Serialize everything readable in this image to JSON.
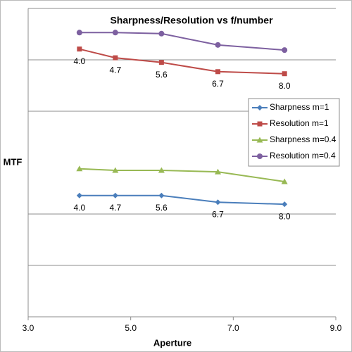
{
  "chart_data": {
    "type": "line",
    "title": "Sharpness/Resolution vs f/number",
    "x_label": "Aperture",
    "y_label": "MTF",
    "xlim": [
      3.0,
      9.0
    ],
    "xticks": [
      {
        "value": 3,
        "label": "3.0"
      },
      {
        "value": 5,
        "label": "5.0"
      },
      {
        "value": 7,
        "label": "7.0"
      },
      {
        "value": 9,
        "label": "9.0"
      }
    ],
    "ylim": [
      0,
      6
    ],
    "yticks": [
      1,
      2,
      4,
      5,
      6
    ],
    "grid": true,
    "legend": "right",
    "x": [
      4.0,
      4.7,
      5.6,
      6.7,
      8.0
    ],
    "series": [
      {
        "name": "Sharpness m=1",
        "color": "#4a7ebb",
        "marker": "diamond",
        "values": [
          2.36,
          2.36,
          2.36,
          2.23,
          2.19
        ],
        "point_labels": [
          "4.0",
          "4.7",
          "5.6",
          "6.7",
          "8.0"
        ]
      },
      {
        "name": "Resolution m=1",
        "color": "#be4b48",
        "marker": "square",
        "values": [
          5.21,
          5.04,
          4.95,
          4.77,
          4.73
        ],
        "point_labels": [
          "4.0",
          "4.7",
          "5.6",
          "6.7",
          "8.0"
        ]
      },
      {
        "name": "Sharpness m=0.4",
        "color": "#98b954",
        "marker": "triangle",
        "values": [
          2.88,
          2.85,
          2.85,
          2.82,
          2.63
        ]
      },
      {
        "name": "Resolution m=0.4",
        "color": "#7d60a0",
        "marker": "circle",
        "values": [
          5.53,
          5.53,
          5.51,
          5.29,
          5.19
        ]
      }
    ]
  }
}
